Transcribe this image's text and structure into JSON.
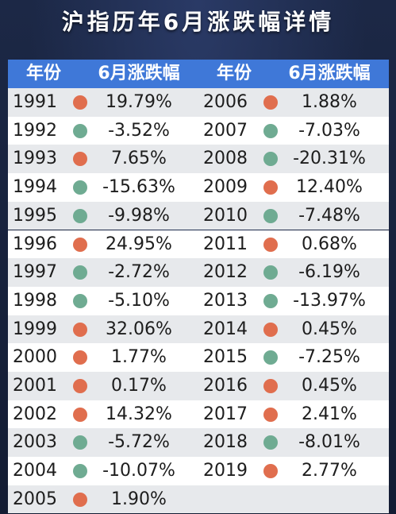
{
  "title": "沪指历年6月涨跌幅详情",
  "colors": {
    "up": "#e06e4e",
    "down": "#6fab92",
    "header": "#3f78d8"
  },
  "headers": [
    "年份",
    "6月涨跌幅",
    "年份",
    "6月涨跌幅"
  ],
  "chart_data": {
    "type": "table",
    "title": "沪指历年6月涨跌幅详情",
    "columns": [
      "年份",
      "6月涨跌幅"
    ],
    "rows": [
      {
        "year": "1991",
        "change": "19.79%",
        "value": 19.79,
        "trend": "up"
      },
      {
        "year": "1992",
        "change": "-3.52%",
        "value": -3.52,
        "trend": "down"
      },
      {
        "year": "1993",
        "change": "7.65%",
        "value": 7.65,
        "trend": "up"
      },
      {
        "year": "1994",
        "change": "-15.63%",
        "value": -15.63,
        "trend": "down"
      },
      {
        "year": "1995",
        "change": "-9.98%",
        "value": -9.98,
        "trend": "down"
      },
      {
        "year": "1996",
        "change": "24.95%",
        "value": 24.95,
        "trend": "up"
      },
      {
        "year": "1997",
        "change": "-2.72%",
        "value": -2.72,
        "trend": "down"
      },
      {
        "year": "1998",
        "change": "-5.10%",
        "value": -5.1,
        "trend": "down"
      },
      {
        "year": "1999",
        "change": "32.06%",
        "value": 32.06,
        "trend": "up"
      },
      {
        "year": "2000",
        "change": "1.77%",
        "value": 1.77,
        "trend": "up"
      },
      {
        "year": "2001",
        "change": "0.17%",
        "value": 0.17,
        "trend": "up"
      },
      {
        "year": "2002",
        "change": "14.32%",
        "value": 14.32,
        "trend": "up"
      },
      {
        "year": "2003",
        "change": "-5.72%",
        "value": -5.72,
        "trend": "down"
      },
      {
        "year": "2004",
        "change": "-10.07%",
        "value": -10.07,
        "trend": "down"
      },
      {
        "year": "2005",
        "change": "1.90%",
        "value": 1.9,
        "trend": "up"
      },
      {
        "year": "2006",
        "change": "1.88%",
        "value": 1.88,
        "trend": "up"
      },
      {
        "year": "2007",
        "change": "-7.03%",
        "value": -7.03,
        "trend": "down"
      },
      {
        "year": "2008",
        "change": "-20.31%",
        "value": -20.31,
        "trend": "down"
      },
      {
        "year": "2009",
        "change": "12.40%",
        "value": 12.4,
        "trend": "up"
      },
      {
        "year": "2010",
        "change": "-7.48%",
        "value": -7.48,
        "trend": "down"
      },
      {
        "year": "2011",
        "change": "0.68%",
        "value": 0.68,
        "trend": "up"
      },
      {
        "year": "2012",
        "change": "-6.19%",
        "value": -6.19,
        "trend": "down"
      },
      {
        "year": "2013",
        "change": "-13.97%",
        "value": -13.97,
        "trend": "down"
      },
      {
        "year": "2014",
        "change": "0.45%",
        "value": 0.45,
        "trend": "up"
      },
      {
        "year": "2015",
        "change": "-7.25%",
        "value": -7.25,
        "trend": "down"
      },
      {
        "year": "2016",
        "change": "0.45%",
        "value": 0.45,
        "trend": "up"
      },
      {
        "year": "2017",
        "change": "2.41%",
        "value": 2.41,
        "trend": "up"
      },
      {
        "year": "2018",
        "change": "-8.01%",
        "value": -8.01,
        "trend": "down"
      },
      {
        "year": "2019",
        "change": "2.77%",
        "value": 2.77,
        "trend": "up"
      }
    ]
  }
}
